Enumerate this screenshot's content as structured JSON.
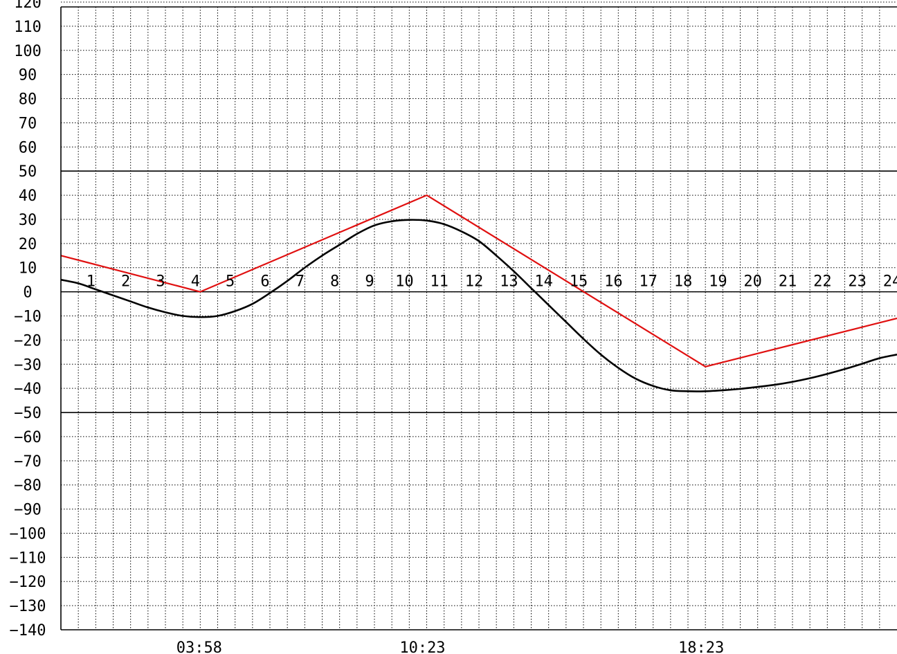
{
  "chart_data": {
    "type": "line",
    "title": "",
    "xlabel": "",
    "ylabel": "",
    "xlim": [
      0,
      24
    ],
    "ylim": [
      -140,
      120
    ],
    "y_ticks": [
      120,
      110,
      100,
      90,
      80,
      70,
      60,
      50,
      40,
      30,
      20,
      10,
      0,
      -10,
      -20,
      -30,
      -40,
      -50,
      -60,
      -70,
      -80,
      -90,
      -100,
      -110,
      -120,
      -130,
      -140
    ],
    "reference_lines_y": [
      50,
      0,
      -50
    ],
    "grid": "dotted",
    "hour_labels": [
      "1",
      "2",
      "3",
      "4",
      "5",
      "6",
      "7",
      "8",
      "9",
      "10",
      "11",
      "12",
      "13",
      "14",
      "15",
      "16",
      "17",
      "18",
      "19",
      "20",
      "21",
      "22",
      "23",
      "24"
    ],
    "time_labels": [
      {
        "x": 3.97,
        "text": "03:58"
      },
      {
        "x": 10.38,
        "text": "10:23"
      },
      {
        "x": 18.38,
        "text": "18:23"
      }
    ],
    "colors": {
      "tide_line": "#e01010",
      "curve": "#000000",
      "reference": "#000000",
      "grid": "#000000"
    },
    "series": [
      {
        "style": "polyline",
        "color": "#e01010",
        "points": [
          [
            0,
            15
          ],
          [
            4,
            0
          ],
          [
            10.5,
            40
          ],
          [
            18.5,
            -31
          ],
          [
            24,
            -11
          ]
        ]
      },
      {
        "style": "smooth",
        "color": "#000000",
        "points": [
          [
            0,
            5
          ],
          [
            0.5,
            3.5
          ],
          [
            1,
            1
          ],
          [
            1.5,
            -1.5
          ],
          [
            2,
            -4
          ],
          [
            2.5,
            -6.5
          ],
          [
            3,
            -8.5
          ],
          [
            3.5,
            -10
          ],
          [
            4,
            -10.5
          ],
          [
            4.5,
            -10
          ],
          [
            5,
            -8
          ],
          [
            5.5,
            -5
          ],
          [
            6,
            -0.5
          ],
          [
            6.5,
            4.5
          ],
          [
            7,
            10
          ],
          [
            7.5,
            15
          ],
          [
            8,
            19.5
          ],
          [
            8.5,
            24
          ],
          [
            9,
            27.5
          ],
          [
            9.5,
            29.2
          ],
          [
            10,
            29.8
          ],
          [
            10.5,
            29.5
          ],
          [
            11,
            28
          ],
          [
            11.5,
            25
          ],
          [
            12,
            21
          ],
          [
            12.5,
            15
          ],
          [
            13,
            8.5
          ],
          [
            13.5,
            1.5
          ],
          [
            14,
            -5.5
          ],
          [
            14.5,
            -12.5
          ],
          [
            15,
            -19.5
          ],
          [
            15.5,
            -26
          ],
          [
            16,
            -31.5
          ],
          [
            16.5,
            -36
          ],
          [
            17,
            -39
          ],
          [
            17.5,
            -40.8
          ],
          [
            18,
            -41.2
          ],
          [
            18.5,
            -41.2
          ],
          [
            19,
            -40.8
          ],
          [
            19.5,
            -40.2
          ],
          [
            20,
            -39.4
          ],
          [
            20.5,
            -38.5
          ],
          [
            21,
            -37.3
          ],
          [
            21.5,
            -35.8
          ],
          [
            22,
            -34
          ],
          [
            22.5,
            -32
          ],
          [
            23,
            -29.8
          ],
          [
            23.5,
            -27.5
          ],
          [
            24,
            -26
          ]
        ]
      }
    ]
  }
}
